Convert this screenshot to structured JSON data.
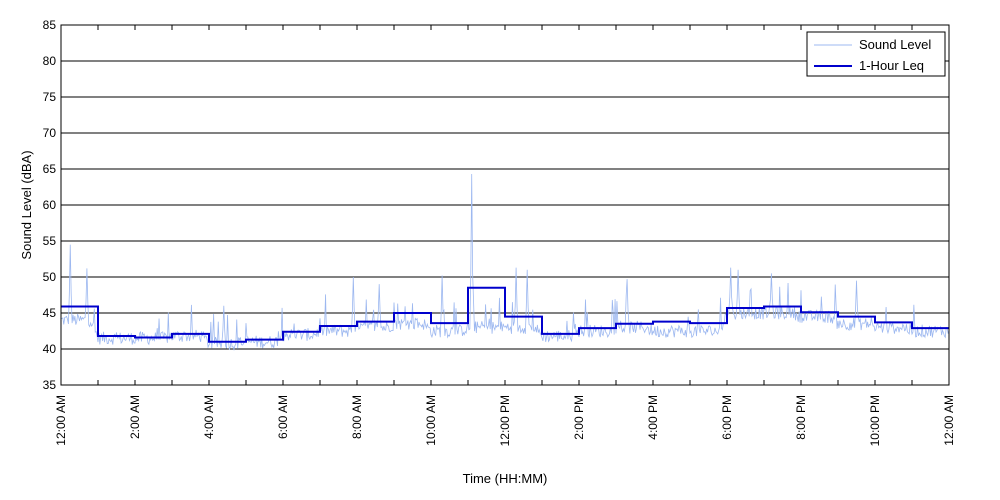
{
  "chart_data": {
    "type": "line",
    "xlabel": "Time (HH:MM)",
    "ylabel": "Sound Level (dBA)",
    "ylim": [
      35,
      85
    ],
    "yticks": [
      35,
      40,
      45,
      50,
      55,
      60,
      65,
      70,
      75,
      80,
      85
    ],
    "xlim_hours": [
      0,
      24
    ],
    "xtick_hours": [
      0,
      2,
      4,
      6,
      8,
      10,
      12,
      14,
      16,
      18,
      20,
      22,
      24
    ],
    "xtick_labels": [
      "12:00 AM",
      "2:00 AM",
      "4:00 AM",
      "6:00 AM",
      "8:00 AM",
      "10:00 AM",
      "12:00 PM",
      "2:00 PM",
      "4:00 PM",
      "6:00 PM",
      "8:00 PM",
      "10:00 PM",
      "12:00 AM"
    ],
    "grid": "horizontal",
    "legend_position": "top-right",
    "colors": {
      "sound_level": "#9db8f0",
      "leq": "#0000cc"
    },
    "series": [
      {
        "name": "Sound Level",
        "style": "thin-line",
        "hourly_baseline": [
          44,
          41.5,
          41.5,
          41.8,
          40.8,
          41,
          42,
          42.5,
          43,
          43.5,
          42.5,
          43,
          43,
          41.8,
          42.5,
          43,
          42.5,
          42.5,
          45,
          45,
          44.5,
          43.5,
          43,
          42.5
        ],
        "peaks": [
          {
            "hour": 0.25,
            "value": 54.5
          },
          {
            "hour": 0.7,
            "value": 51.2
          },
          {
            "hour": 4.4,
            "value": 46
          },
          {
            "hour": 7.9,
            "value": 50
          },
          {
            "hour": 8.6,
            "value": 49
          },
          {
            "hour": 10.3,
            "value": 50.2
          },
          {
            "hour": 11.1,
            "value": 64.3
          },
          {
            "hour": 12.3,
            "value": 51.3
          },
          {
            "hour": 12.6,
            "value": 51
          },
          {
            "hour": 15.3,
            "value": 49.7
          },
          {
            "hour": 18.1,
            "value": 51.3
          },
          {
            "hour": 18.3,
            "value": 51
          },
          {
            "hour": 19.2,
            "value": 50.5
          },
          {
            "hour": 21.5,
            "value": 49.5
          }
        ]
      },
      {
        "name": "1-Hour Leq",
        "style": "step",
        "hours": [
          0,
          1,
          2,
          3,
          4,
          5,
          6,
          7,
          8,
          9,
          10,
          11,
          12,
          13,
          14,
          15,
          16,
          17,
          18,
          19,
          20,
          21,
          22,
          23
        ],
        "values": [
          45.9,
          41.8,
          41.6,
          42.1,
          41,
          41.3,
          42.4,
          43.2,
          43.8,
          45,
          43.6,
          48.5,
          44.5,
          42.1,
          42.9,
          43.5,
          43.8,
          43.6,
          45.7,
          45.9,
          45.1,
          44.5,
          43.7,
          42.9
        ]
      }
    ]
  }
}
